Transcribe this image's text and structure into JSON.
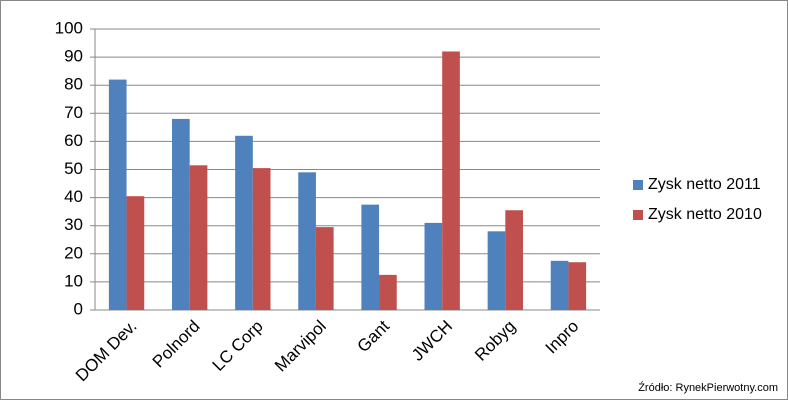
{
  "chart_data": {
    "type": "bar",
    "categories": [
      "DOM Dev.",
      "Polnord",
      "LC Corp",
      "Marvipol",
      "Gant",
      "JWCH",
      "Robyg",
      "Inpro"
    ],
    "series": [
      {
        "name": "Zysk netto 2011",
        "color": "#4f81bd",
        "values": [
          82,
          68,
          62,
          49,
          37.5,
          31,
          28,
          17.5
        ]
      },
      {
        "name": "Zysk netto 2010",
        "color": "#c0504d",
        "values": [
          40.5,
          51.5,
          50.5,
          29.5,
          12.5,
          92,
          35.5,
          17
        ]
      }
    ],
    "ylim": [
      0,
      100
    ],
    "yticks": [
      0,
      10,
      20,
      30,
      40,
      50,
      60,
      70,
      80,
      90,
      100
    ],
    "grid": true,
    "legend": "right",
    "source": "Źródło: RynekPierwotny.com"
  }
}
